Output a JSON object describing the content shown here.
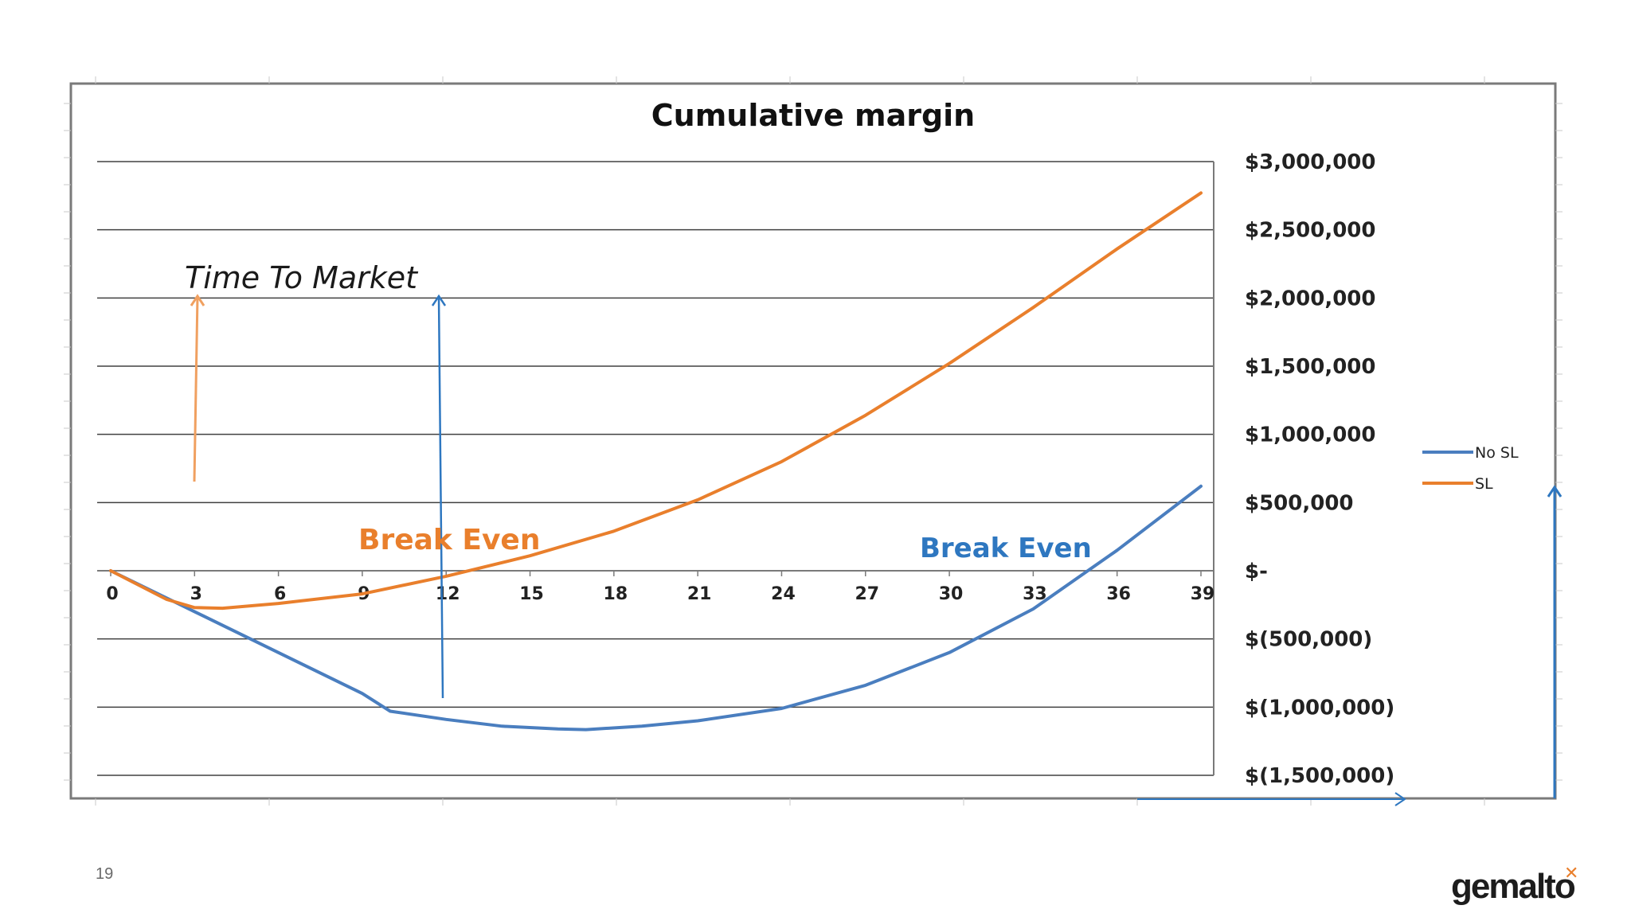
{
  "slide": {
    "page_number": "19",
    "logo_text": "gemalto",
    "logo_mark": "✕"
  },
  "annotations": {
    "time_to_market": "Time To Market",
    "break_even_sl": "Break Even",
    "break_even_no_sl": "Break Even"
  },
  "colors": {
    "no_sl": "#4a7ebf",
    "sl": "#e97f2c",
    "arrow_blue": "#2e77c0",
    "arrow_orange": "#f0a060",
    "grid": "#404040",
    "logo_accent": "#e97f2c"
  },
  "chart_data": {
    "type": "line",
    "title": "Cumulative margin",
    "xlabel": "",
    "ylabel": "",
    "x_ticks": [
      "0",
      "3",
      "6",
      "9",
      "12",
      "15",
      "18",
      "21",
      "24",
      "27",
      "30",
      "33",
      "36",
      "39"
    ],
    "y_ticks": [
      "$3,000,000",
      "$2,500,000",
      "$2,000,000",
      "$1,500,000",
      "$1,000,000",
      "$500,000",
      "$-",
      "$(500,000)",
      "$(1,000,000)",
      "$(1,500,000)"
    ],
    "xlim": [
      0,
      39
    ],
    "ylim": [
      -1500000,
      3000000
    ],
    "grid": true,
    "y_axis_position": "right",
    "legend_position": "right",
    "series": [
      {
        "name": "No SL",
        "color": "#4a7ebf",
        "x": [
          0,
          3,
          6,
          9,
          10,
          12,
          14,
          16,
          17,
          19,
          21,
          24,
          27,
          30,
          33,
          36,
          39
        ],
        "y": [
          0,
          -300000,
          -600000,
          -900000,
          -1030000,
          -1090000,
          -1140000,
          -1160000,
          -1165000,
          -1140000,
          -1100000,
          -1010000,
          -840000,
          -600000,
          -280000,
          150000,
          620000
        ]
      },
      {
        "name": "SL",
        "color": "#e97f2c",
        "x": [
          0,
          2,
          3,
          4,
          6,
          9,
          12,
          15,
          18,
          21,
          24,
          27,
          30,
          33,
          36,
          39
        ],
        "y": [
          0,
          -210000,
          -270000,
          -275000,
          -240000,
          -170000,
          -40000,
          110000,
          290000,
          520000,
          800000,
          1140000,
          1520000,
          1930000,
          2360000,
          2770000
        ]
      }
    ]
  }
}
